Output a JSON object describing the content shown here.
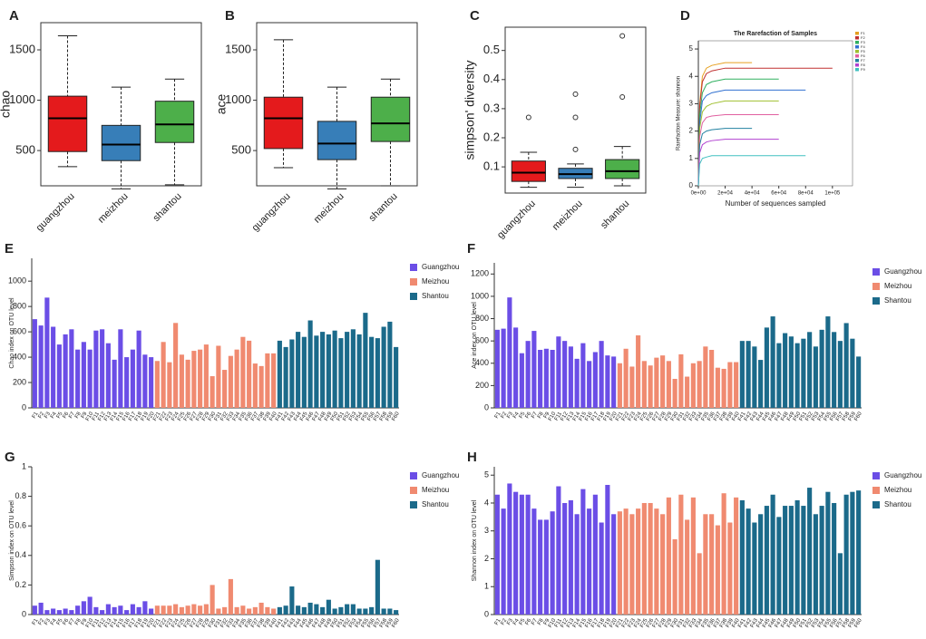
{
  "chart_data": [
    {
      "type": "box",
      "label": "A",
      "ylabel": "chao",
      "ylim": [
        150,
        1770
      ],
      "yticks": [
        500,
        1000,
        1500
      ],
      "boxes": [
        {
          "name": "guangzhou",
          "color": "#e41a1c",
          "min": 340,
          "q1": 490,
          "median": 820,
          "q3": 1040,
          "max": 1640,
          "outliers": []
        },
        {
          "name": "meizhou",
          "color": "#377eb8",
          "min": 120,
          "q1": 400,
          "median": 560,
          "q3": 750,
          "max": 1130,
          "outliers": []
        },
        {
          "name": "shantou",
          "color": "#4daf4a",
          "min": 160,
          "q1": 580,
          "median": 760,
          "q3": 990,
          "max": 1210,
          "outliers": []
        }
      ]
    },
    {
      "type": "box",
      "label": "B",
      "ylabel": "ace",
      "ylim": [
        150,
        1770
      ],
      "yticks": [
        500,
        1000,
        1500
      ],
      "boxes": [
        {
          "name": "guangzhou",
          "color": "#e41a1c",
          "min": 330,
          "q1": 520,
          "median": 820,
          "q3": 1030,
          "max": 1600,
          "outliers": []
        },
        {
          "name": "meizhou",
          "color": "#377eb8",
          "min": 120,
          "q1": 410,
          "median": 570,
          "q3": 790,
          "max": 1130,
          "outliers": []
        },
        {
          "name": "shantou",
          "color": "#4daf4a",
          "min": 150,
          "q1": 590,
          "median": 770,
          "q3": 1030,
          "max": 1210,
          "outliers": []
        }
      ]
    },
    {
      "type": "box",
      "label": "C",
      "ylabel": "simpson' diversity",
      "ylim": [
        0.01,
        0.58
      ],
      "yticks": [
        0.1,
        0.2,
        0.3,
        0.4,
        0.5
      ],
      "boxes": [
        {
          "name": "guangzhou",
          "color": "#e41a1c",
          "min": 0.03,
          "q1": 0.05,
          "median": 0.08,
          "q3": 0.12,
          "max": 0.15,
          "outliers": [
            0.27
          ]
        },
        {
          "name": "meizhou",
          "color": "#377eb8",
          "min": 0.03,
          "q1": 0.06,
          "median": 0.075,
          "q3": 0.095,
          "max": 0.11,
          "outliers": [
            0.16,
            0.27,
            0.35
          ]
        },
        {
          "name": "shantou",
          "color": "#4daf4a",
          "min": 0.035,
          "q1": 0.06,
          "median": 0.085,
          "q3": 0.125,
          "max": 0.17,
          "outliers": [
            0.34,
            0.55
          ]
        }
      ]
    },
    {
      "type": "line",
      "label": "D",
      "title": "The Rarefaction of Samples",
      "xlabel": "Number of sequences sampled",
      "ylabel": "Rarefaction Measure: shannon",
      "xlim": [
        0,
        115000
      ],
      "xticks": [
        {
          "value": 0,
          "label": "0e+00"
        },
        {
          "value": 20000,
          "label": "2e+04"
        },
        {
          "value": 40000,
          "label": "4e+04"
        },
        {
          "value": 60000,
          "label": "6e+04"
        },
        {
          "value": 80000,
          "label": "8e+04"
        },
        {
          "value": 100000,
          "label": "1e+05"
        }
      ],
      "ylim": [
        0,
        5.3
      ],
      "yticks": [
        0,
        1,
        2,
        3,
        4,
        5
      ],
      "x": [
        0,
        1000,
        3000,
        6000,
        10000,
        20000,
        40000,
        60000,
        80000,
        100000
      ],
      "series": [
        {
          "name": "F1",
          "color": "#e6a020",
          "values": [
            0,
            3.0,
            4.0,
            4.3,
            4.4,
            4.5,
            4.5,
            null,
            null,
            null
          ]
        },
        {
          "name": "F2",
          "color": "#c03030",
          "values": [
            0,
            2.9,
            3.8,
            4.1,
            4.2,
            4.3,
            4.3,
            4.3,
            4.3,
            4.3
          ]
        },
        {
          "name": "F3",
          "color": "#30b060",
          "values": [
            0,
            2.6,
            3.4,
            3.7,
            3.8,
            3.9,
            3.9,
            3.9,
            null,
            null
          ]
        },
        {
          "name": "F4",
          "color": "#3070d0",
          "values": [
            0,
            2.3,
            3.1,
            3.3,
            3.4,
            3.5,
            3.5,
            3.5,
            3.5,
            null
          ]
        },
        {
          "name": "F5",
          "color": "#a0c030",
          "values": [
            0,
            2.1,
            2.7,
            2.9,
            3.0,
            3.1,
            3.1,
            3.1,
            null,
            null
          ]
        },
        {
          "name": "F6",
          "color": "#e060a0",
          "values": [
            0,
            1.8,
            2.3,
            2.5,
            2.55,
            2.6,
            2.6,
            2.6,
            null,
            null
          ]
        },
        {
          "name": "F7",
          "color": "#2080a0",
          "values": [
            0,
            1.5,
            1.9,
            2.0,
            2.05,
            2.1,
            2.1,
            null,
            null,
            null
          ]
        },
        {
          "name": "F8",
          "color": "#b040d0",
          "values": [
            0,
            1.2,
            1.5,
            1.6,
            1.65,
            1.7,
            1.7,
            1.7,
            null,
            null
          ]
        },
        {
          "name": "F9",
          "color": "#40c0c0",
          "values": [
            0,
            0.8,
            1.0,
            1.05,
            1.1,
            1.1,
            1.1,
            1.1,
            1.1,
            null
          ]
        }
      ]
    },
    {
      "type": "bar",
      "label": "E",
      "ylabel": "Chao index on OTU level",
      "ylim": [
        0,
        1180
      ],
      "yticks": [
        0,
        200,
        400,
        600,
        800,
        1000
      ],
      "series": [
        {
          "name": "Guangzhou",
          "color": "#6b4ee6",
          "categories": [
            "F1",
            "F2",
            "F3",
            "F4",
            "F5",
            "F6",
            "F7",
            "F8",
            "F9",
            "F10",
            "F11",
            "F12",
            "F13",
            "F14",
            "F15",
            "F16",
            "F17",
            "F18",
            "F19",
            "F20"
          ],
          "values": [
            700,
            650,
            870,
            640,
            500,
            580,
            620,
            460,
            520,
            460,
            610,
            620,
            510,
            380,
            620,
            400,
            460,
            610,
            420,
            400
          ]
        },
        {
          "name": "Meizhou",
          "color": "#f08a70",
          "categories": [
            "F21",
            "F22",
            "F23",
            "F24",
            "F25",
            "F26",
            "F27",
            "F28",
            "F29",
            "F30",
            "F31",
            "F32",
            "F33",
            "F34",
            "F35",
            "F36",
            "F37",
            "F38",
            "F39",
            "F40"
          ],
          "values": [
            370,
            520,
            360,
            670,
            420,
            380,
            450,
            460,
            500,
            250,
            490,
            300,
            410,
            460,
            560,
            530,
            350,
            330,
            430,
            430
          ]
        },
        {
          "name": "Shantou",
          "color": "#1b6a8a",
          "categories": [
            "F41",
            "F42",
            "F43",
            "F44",
            "F45",
            "F46",
            "F47",
            "F48",
            "F49",
            "F50",
            "F51",
            "F52",
            "F53",
            "F54",
            "F55",
            "F56",
            "F57",
            "F58",
            "F59",
            "F60"
          ],
          "values": [
            530,
            480,
            540,
            600,
            560,
            690,
            570,
            600,
            580,
            610,
            550,
            600,
            620,
            580,
            750,
            560,
            550,
            640,
            680,
            480
          ]
        }
      ]
    },
    {
      "type": "bar",
      "label": "F",
      "ylabel": "Ace index on OTU level",
      "ylim": [
        0,
        1300
      ],
      "yticks": [
        0,
        200,
        400,
        600,
        800,
        1000,
        1200
      ],
      "series": [
        {
          "name": "Guangzhou",
          "color": "#6b4ee6",
          "categories": [
            "F1",
            "F2",
            "F3",
            "F4",
            "F5",
            "F6",
            "F7",
            "F8",
            "F9",
            "F10",
            "F11",
            "F12",
            "F13",
            "F14",
            "F15",
            "F16",
            "F17",
            "F18",
            "F19",
            "F20"
          ],
          "values": [
            700,
            710,
            990,
            720,
            490,
            600,
            690,
            520,
            530,
            520,
            640,
            600,
            550,
            440,
            580,
            420,
            500,
            600,
            470,
            460
          ]
        },
        {
          "name": "Meizhou",
          "color": "#f08a70",
          "categories": [
            "F21",
            "F22",
            "F23",
            "F24",
            "F25",
            "F26",
            "F27",
            "F28",
            "F29",
            "F30",
            "F31",
            "F32",
            "F33",
            "F34",
            "F35",
            "F36",
            "F37",
            "F38",
            "F39",
            "F40"
          ],
          "values": [
            400,
            530,
            370,
            650,
            420,
            380,
            450,
            470,
            420,
            260,
            480,
            280,
            400,
            420,
            550,
            520,
            360,
            350,
            410,
            410
          ]
        },
        {
          "name": "Shantou",
          "color": "#1b6a8a",
          "categories": [
            "F41",
            "F42",
            "F43",
            "F44",
            "F45",
            "F46",
            "F47",
            "F48",
            "F49",
            "F50",
            "F51",
            "F52",
            "F53",
            "F54",
            "F55",
            "F56",
            "F57",
            "F58",
            "F59",
            "F60"
          ],
          "values": [
            600,
            600,
            550,
            430,
            720,
            820,
            580,
            670,
            640,
            580,
            620,
            680,
            550,
            700,
            820,
            680,
            600,
            760,
            620,
            460
          ]
        }
      ]
    },
    {
      "type": "bar",
      "label": "G",
      "ylabel": "Simpson index on OTU level",
      "ylim": [
        0,
        1
      ],
      "yticks": [
        0,
        0.2,
        0.4,
        0.6,
        0.8,
        1
      ],
      "series": [
        {
          "name": "Guangzhou",
          "color": "#6b4ee6",
          "categories": [
            "F1",
            "F2",
            "F3",
            "F4",
            "F5",
            "F6",
            "F7",
            "F8",
            "F9",
            "F10",
            "F11",
            "F12",
            "F13",
            "F14",
            "F15",
            "F16",
            "F17",
            "F18",
            "F19",
            "F20"
          ],
          "values": [
            0.06,
            0.08,
            0.03,
            0.04,
            0.03,
            0.04,
            0.03,
            0.06,
            0.09,
            0.12,
            0.05,
            0.03,
            0.07,
            0.05,
            0.06,
            0.03,
            0.07,
            0.05,
            0.09,
            0.04
          ]
        },
        {
          "name": "Meizhou",
          "color": "#f08a70",
          "categories": [
            "F21",
            "F22",
            "F23",
            "F24",
            "F25",
            "F26",
            "F27",
            "F28",
            "F29",
            "F30",
            "F31",
            "F32",
            "F33",
            "F34",
            "F35",
            "F36",
            "F37",
            "F38",
            "F39",
            "F40"
          ],
          "values": [
            0.06,
            0.06,
            0.06,
            0.07,
            0.05,
            0.06,
            0.07,
            0.06,
            0.07,
            0.2,
            0.04,
            0.05,
            0.24,
            0.05,
            0.06,
            0.04,
            0.05,
            0.08,
            0.05,
            0.04
          ]
        },
        {
          "name": "Shantou",
          "color": "#1b6a8a",
          "categories": [
            "F41",
            "F42",
            "F43",
            "F44",
            "F45",
            "F46",
            "F47",
            "F48",
            "F49",
            "F50",
            "F51",
            "F52",
            "F53",
            "F54",
            "F55",
            "F56",
            "F57",
            "F58",
            "F59",
            "F60"
          ],
          "values": [
            0.05,
            0.06,
            0.19,
            0.06,
            0.05,
            0.08,
            0.07,
            0.05,
            0.1,
            0.04,
            0.05,
            0.07,
            0.07,
            0.04,
            0.04,
            0.05,
            0.37,
            0.04,
            0.04,
            0.03
          ]
        }
      ]
    },
    {
      "type": "bar",
      "label": "H",
      "ylabel": "Shannon index on OTU level",
      "ylim": [
        0,
        5.3
      ],
      "yticks": [
        0,
        1,
        2,
        3,
        4,
        5
      ],
      "series": [
        {
          "name": "Guangzhou",
          "color": "#6b4ee6",
          "categories": [
            "F1",
            "F2",
            "F3",
            "F4",
            "F5",
            "F6",
            "F7",
            "F8",
            "F9",
            "F10",
            "F11",
            "F12",
            "F13",
            "F14",
            "F15",
            "F16",
            "F17",
            "F18",
            "F19",
            "F20"
          ],
          "values": [
            4.3,
            3.8,
            4.7,
            4.4,
            4.3,
            4.3,
            3.8,
            3.4,
            3.4,
            3.7,
            4.6,
            4.0,
            4.1,
            3.6,
            4.5,
            3.8,
            4.3,
            3.3,
            4.65,
            3.6
          ]
        },
        {
          "name": "Meizhou",
          "color": "#f08a70",
          "categories": [
            "F21",
            "F22",
            "F23",
            "F24",
            "F25",
            "F26",
            "F27",
            "F28",
            "F29",
            "F30",
            "F31",
            "F32",
            "F33",
            "F34",
            "F35",
            "F36",
            "F37",
            "F38",
            "F39",
            "F40"
          ],
          "values": [
            3.7,
            3.8,
            3.6,
            3.8,
            4.0,
            4.0,
            3.8,
            3.6,
            4.2,
            2.7,
            4.3,
            3.4,
            4.2,
            2.2,
            3.6,
            3.6,
            3.2,
            4.35,
            3.3,
            4.2
          ]
        },
        {
          "name": "Shantou",
          "color": "#1b6a8a",
          "categories": [
            "F41",
            "F42",
            "F43",
            "F44",
            "F45",
            "F46",
            "F47",
            "F48",
            "F49",
            "F50",
            "F51",
            "F52",
            "F53",
            "F54",
            "F55",
            "F56",
            "F57",
            "F58",
            "F59",
            "F60"
          ],
          "values": [
            4.1,
            3.8,
            3.3,
            3.6,
            3.9,
            4.3,
            3.5,
            3.9,
            3.9,
            4.1,
            3.9,
            4.55,
            3.6,
            3.9,
            4.4,
            4.0,
            2.2,
            4.3,
            4.4,
            4.45
          ]
        }
      ]
    }
  ]
}
